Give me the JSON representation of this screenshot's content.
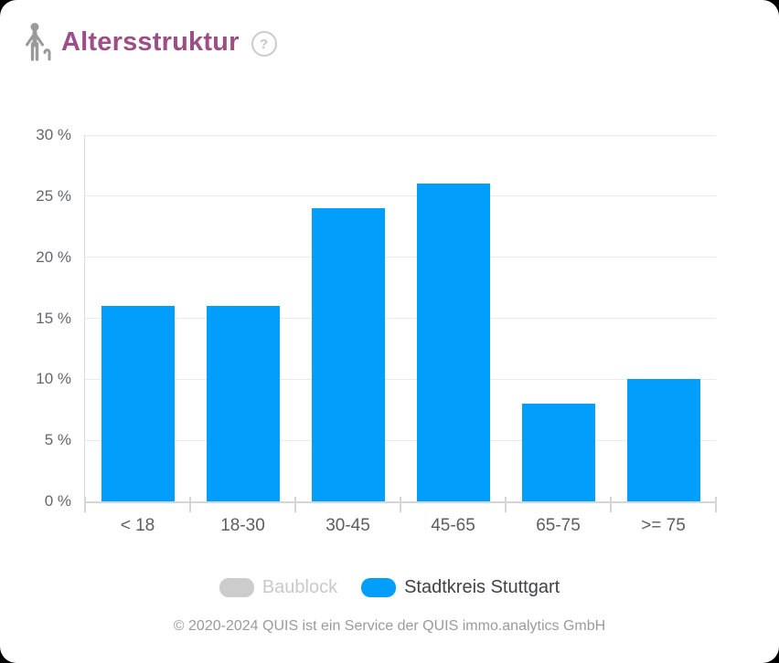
{
  "header": {
    "title": "Altersstruktur",
    "title_color": "#9C4E87",
    "help_glyph": "?"
  },
  "chart_data": {
    "type": "bar",
    "title": "Altersstruktur",
    "categories": [
      "< 18",
      "18-30",
      "30-45",
      "45-65",
      "65-75",
      ">= 75"
    ],
    "series": [
      {
        "name": "Baublock",
        "color": "#CCCCCC",
        "visible": false,
        "values": []
      },
      {
        "name": "Stadtkreis Stuttgart",
        "color": "#019FFB",
        "visible": true,
        "values": [
          16,
          16,
          24,
          26,
          8,
          10
        ]
      }
    ],
    "xlabel": "",
    "ylabel": "",
    "ylim": [
      0,
      30
    ],
    "ytick_step": 5,
    "ytick_suffix": " %",
    "grid": true,
    "legend_position": "bottom"
  },
  "colors": {
    "legend_active_text": "#3F4246",
    "legend_disabled_text": "#C9C9C9",
    "icon_gray": "#9A9A9A"
  },
  "footer": {
    "text": "© 2020-2024 QUIS ist ein Service der QUIS immo.analytics GmbH"
  }
}
